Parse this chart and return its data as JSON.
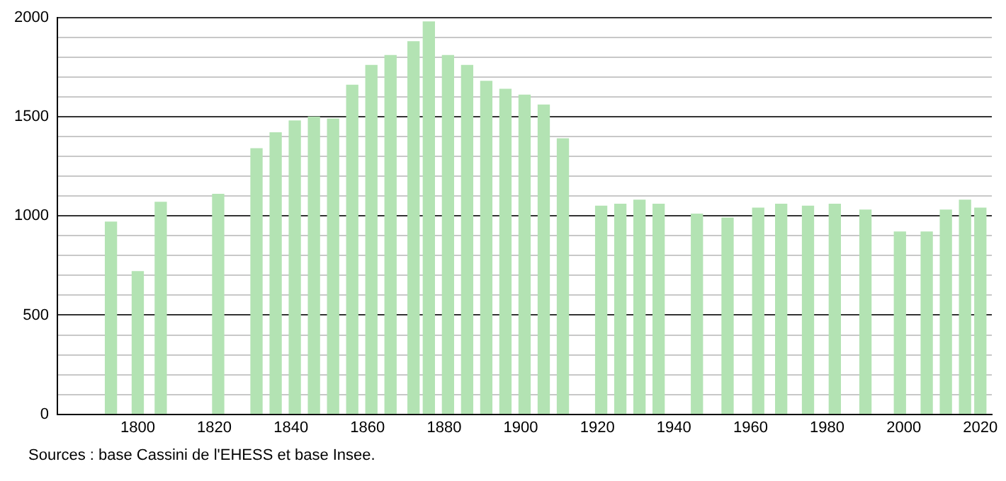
{
  "chart_data": {
    "type": "bar",
    "color": "#b3e3b3",
    "x": [
      1793,
      1800,
      1806,
      1821,
      1831,
      1836,
      1841,
      1846,
      1851,
      1856,
      1861,
      1866,
      1872,
      1876,
      1881,
      1886,
      1891,
      1896,
      1901,
      1906,
      1911,
      1921,
      1926,
      1931,
      1936,
      1946,
      1954,
      1962,
      1968,
      1975,
      1982,
      1990,
      1999,
      2006,
      2011,
      2016,
      2020
    ],
    "values": [
      970,
      720,
      1070,
      1110,
      1340,
      1420,
      1480,
      1500,
      1490,
      1660,
      1760,
      1810,
      1880,
      1980,
      1810,
      1760,
      1680,
      1640,
      1610,
      1560,
      1390,
      1050,
      1060,
      1080,
      1060,
      1010,
      990,
      1040,
      1060,
      1050,
      1060,
      1030,
      920,
      920,
      1030,
      1080,
      1040
    ],
    "xlim": [
      1779,
      2023
    ],
    "xticks": [
      1800,
      1820,
      1840,
      1860,
      1880,
      1900,
      1920,
      1940,
      1960,
      1980,
      2000,
      2020
    ],
    "ylim": [
      0,
      2000
    ],
    "yticks": [
      0,
      {
        "value": 100,
        "label": null
      },
      {
        "value": 200,
        "label": null
      },
      {
        "value": 300,
        "label": null
      },
      {
        "value": 400,
        "label": null
      },
      500,
      {
        "value": 600,
        "label": null
      },
      {
        "value": 700,
        "label": null
      },
      {
        "value": 800,
        "label": null
      },
      {
        "value": 900,
        "label": null
      },
      1000,
      {
        "value": 1100,
        "label": null
      },
      {
        "value": 1200,
        "label": null
      },
      {
        "value": 1300,
        "label": null
      },
      {
        "value": 1400,
        "label": null
      },
      1500,
      {
        "value": 1600,
        "label": null
      },
      {
        "value": 1700,
        "label": null
      },
      {
        "value": 1800,
        "label": null
      },
      {
        "value": 1900,
        "label": null
      },
      2000
    ],
    "grid": "y",
    "annotations": [
      "Sources : base Cassini de l'EHESS et base Insee."
    ]
  }
}
